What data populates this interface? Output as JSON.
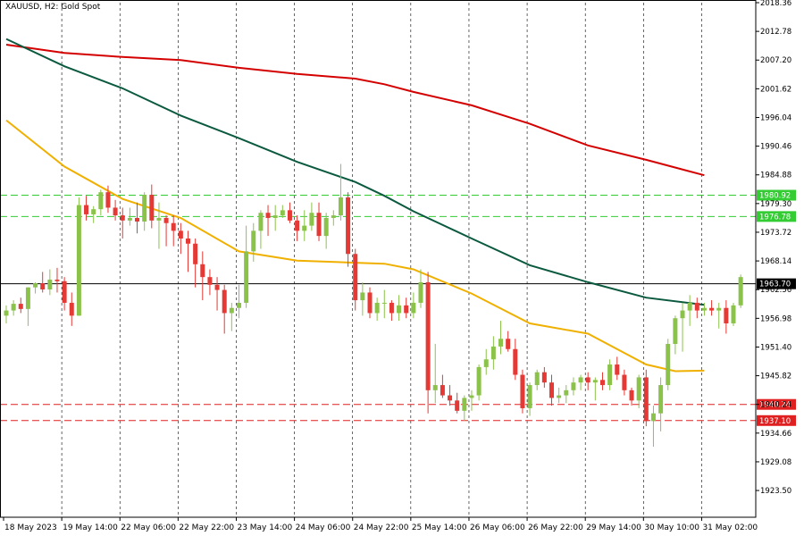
{
  "chart_title": "XAUUSD, H2:  Gold Spot",
  "chart_data": {
    "type": "candlestick",
    "symbol": "XAUUSD",
    "timeframe": "H2",
    "description": "Gold Spot",
    "grid": "vertical dashed",
    "ylim": [
      1918.3,
      2018.36
    ],
    "y_ticks": [
      "2018.36",
      "2012.78",
      "2007.20",
      "2001.62",
      "1996.04",
      "1990.46",
      "1984.88",
      "1979.30",
      "1973.72",
      "1968.14",
      "1962.56",
      "1956.98",
      "1951.40",
      "1945.82",
      "1940.24",
      "1934.66",
      "1929.08",
      "1923.50"
    ],
    "x_labels": [
      "18 May 2023",
      "19 May 14:00",
      "22 May 06:00",
      "22 May 22:00",
      "23 May 14:00",
      "24 May 06:00",
      "24 May 22:00",
      "25 May 14:00",
      "26 May 06:00",
      "26 May 22:00",
      "29 May 14:00",
      "30 May 10:00",
      "31 May 02:00"
    ],
    "x_label_positions": [
      0,
      8,
      16,
      24,
      32,
      40,
      48,
      56,
      64,
      72,
      80,
      88,
      96
    ],
    "candles": [
      [
        1957.5,
        1959.5,
        1956.0,
        1958.5
      ],
      [
        1958.5,
        1960.5,
        1957.5,
        1959.8
      ],
      [
        1959.8,
        1961.0,
        1958.0,
        1958.8
      ],
      [
        1958.8,
        1963.0,
        1955.5,
        1963.0
      ],
      [
        1963.0,
        1964.0,
        1961.8,
        1963.8
      ],
      [
        1963.8,
        1966.0,
        1962.0,
        1962.6
      ],
      [
        1962.6,
        1966.5,
        1961.5,
        1964.5
      ],
      [
        1964.5,
        1966.8,
        1962.0,
        1964.2
      ],
      [
        1964.2,
        1965.0,
        1958.5,
        1960.0
      ],
      [
        1960.0,
        1962.0,
        1955.5,
        1957.5
      ],
      [
        1957.5,
        1980.5,
        1957.5,
        1979.0
      ],
      [
        1979.0,
        1980.8,
        1976.0,
        1977.2
      ],
      [
        1977.2,
        1978.8,
        1975.5,
        1978.2
      ],
      [
        1978.2,
        1982.0,
        1977.0,
        1981.5
      ],
      [
        1981.5,
        1982.8,
        1977.5,
        1978.5
      ],
      [
        1978.5,
        1980.0,
        1976.0,
        1977.0
      ],
      [
        1977.0,
        1978.5,
        1972.5,
        1976.0
      ],
      [
        1976.0,
        1978.5,
        1975.0,
        1976.5
      ],
      [
        1976.5,
        1979.5,
        1973.5,
        1975.8
      ],
      [
        1975.8,
        1981.5,
        1974.0,
        1981.0
      ],
      [
        1981.0,
        1983.0,
        1974.5,
        1976.0
      ],
      [
        1976.0,
        1979.5,
        1970.5,
        1976.5
      ],
      [
        1976.5,
        1977.0,
        1971.0,
        1975.5
      ],
      [
        1975.5,
        1977.0,
        1971.0,
        1974.0
      ],
      [
        1974.0,
        1975.5,
        1969.5,
        1972.5
      ],
      [
        1972.5,
        1974.0,
        1966.0,
        1971.5
      ],
      [
        1971.5,
        1972.5,
        1963.0,
        1967.5
      ],
      [
        1967.5,
        1970.0,
        1960.5,
        1965.0
      ],
      [
        1965.0,
        1966.5,
        1961.5,
        1963.5
      ],
      [
        1963.5,
        1965.0,
        1958.5,
        1962.5
      ],
      [
        1962.5,
        1963.5,
        1954.0,
        1958.0
      ],
      [
        1958.0,
        1960.0,
        1954.5,
        1959.0
      ],
      [
        1959.0,
        1963.5,
        1957.0,
        1960.0
      ],
      [
        1960.0,
        1975.0,
        1959.0,
        1970.0
      ],
      [
        1970.0,
        1975.5,
        1968.0,
        1974.0
      ],
      [
        1974.0,
        1978.0,
        1970.5,
        1977.5
      ],
      [
        1977.5,
        1979.0,
        1973.0,
        1976.5
      ],
      [
        1976.5,
        1979.0,
        1974.0,
        1977.0
      ],
      [
        1977.0,
        1979.0,
        1976.5,
        1978.0
      ],
      [
        1978.0,
        1979.5,
        1975.5,
        1976.0
      ],
      [
        1976.0,
        1977.0,
        1972.0,
        1974.0
      ],
      [
        1974.0,
        1978.0,
        1972.0,
        1975.0
      ],
      [
        1975.0,
        1979.5,
        1974.0,
        1977.5
      ],
      [
        1977.5,
        1979.5,
        1972.0,
        1973.0
      ],
      [
        1973.0,
        1977.5,
        1970.5,
        1976.5
      ],
      [
        1976.5,
        1978.0,
        1975.0,
        1977.0
      ],
      [
        1977.0,
        1987.0,
        1976.0,
        1980.5
      ],
      [
        1980.5,
        1981.5,
        1967.0,
        1969.5
      ],
      [
        1969.5,
        1970.5,
        1958.5,
        1960.5
      ],
      [
        1960.5,
        1964.0,
        1957.5,
        1962.0
      ],
      [
        1962.0,
        1963.0,
        1957.0,
        1958.0
      ],
      [
        1958.0,
        1961.0,
        1956.5,
        1960.0
      ],
      [
        1960.0,
        1962.5,
        1957.0,
        1960.0
      ],
      [
        1960.0,
        1960.5,
        1956.5,
        1958.0
      ],
      [
        1958.0,
        1961.5,
        1956.5,
        1959.5
      ],
      [
        1959.5,
        1961.0,
        1957.0,
        1958.0
      ],
      [
        1958.0,
        1962.0,
        1957.0,
        1960.0
      ],
      [
        1960.0,
        1966.5,
        1959.0,
        1964.0
      ],
      [
        1964.0,
        1966.0,
        1938.5,
        1943.0
      ],
      [
        1943.0,
        1952.0,
        1940.5,
        1944.0
      ],
      [
        1944.0,
        1946.0,
        1941.5,
        1942.0
      ],
      [
        1942.0,
        1944.0,
        1940.0,
        1941.0
      ],
      [
        1941.0,
        1942.5,
        1938.5,
        1939.0
      ],
      [
        1939.0,
        1942.0,
        1937.0,
        1941.5
      ],
      [
        1941.5,
        1943.0,
        1939.0,
        1942.0
      ],
      [
        1942.0,
        1948.0,
        1941.0,
        1947.5
      ],
      [
        1947.5,
        1951.0,
        1946.0,
        1949.0
      ],
      [
        1949.0,
        1953.5,
        1947.0,
        1951.5
      ],
      [
        1951.5,
        1956.5,
        1950.0,
        1953.0
      ],
      [
        1953.0,
        1954.5,
        1950.5,
        1951.0
      ],
      [
        1951.0,
        1953.0,
        1945.0,
        1946.0
      ],
      [
        1946.0,
        1947.0,
        1938.5,
        1939.5
      ],
      [
        1939.5,
        1944.5,
        1938.0,
        1944.0
      ],
      [
        1944.0,
        1947.0,
        1943.0,
        1946.5
      ],
      [
        1946.5,
        1947.5,
        1943.5,
        1944.5
      ],
      [
        1944.5,
        1946.0,
        1940.0,
        1941.5
      ],
      [
        1941.5,
        1943.5,
        1940.5,
        1942.0
      ],
      [
        1942.0,
        1944.0,
        1940.5,
        1943.0
      ],
      [
        1943.0,
        1945.5,
        1942.0,
        1944.5
      ],
      [
        1944.5,
        1946.0,
        1943.0,
        1945.5
      ],
      [
        1945.5,
        1946.5,
        1943.0,
        1944.5
      ],
      [
        1944.5,
        1945.5,
        1941.0,
        1945.0
      ],
      [
        1945.0,
        1946.5,
        1943.0,
        1944.0
      ],
      [
        1944.0,
        1949.0,
        1943.0,
        1948.0
      ],
      [
        1948.0,
        1949.5,
        1945.0,
        1946.0
      ],
      [
        1946.0,
        1947.0,
        1942.0,
        1943.0
      ],
      [
        1943.0,
        1943.5,
        1940.0,
        1941.0
      ],
      [
        1941.0,
        1946.0,
        1939.5,
        1945.5
      ],
      [
        1945.5,
        1947.0,
        1936.0,
        1937.0
      ],
      [
        1937.0,
        1940.0,
        1932.0,
        1938.5
      ],
      [
        1938.5,
        1945.5,
        1935.0,
        1944.0
      ],
      [
        1944.0,
        1953.0,
        1943.0,
        1952.0
      ],
      [
        1952.0,
        1957.5,
        1950.0,
        1957.0
      ],
      [
        1957.0,
        1960.0,
        1950.5,
        1958.5
      ],
      [
        1958.5,
        1961.5,
        1955.5,
        1960.0
      ],
      [
        1960.0,
        1961.0,
        1957.0,
        1958.5
      ],
      [
        1958.5,
        1960.0,
        1957.5,
        1959.0
      ],
      [
        1959.0,
        1960.5,
        1957.5,
        1958.5
      ],
      [
        1958.5,
        1960.0,
        1955.0,
        1959.0
      ],
      [
        1959.0,
        1960.5,
        1954.0,
        1956.0
      ],
      [
        1956.0,
        1960.0,
        1955.5,
        1959.5
      ],
      [
        1959.5,
        1965.5,
        1959.0,
        1965.0
      ]
    ],
    "moving_averages": [
      {
        "color": "#d40000",
        "label_on_chart": "",
        "points": [
          [
            0,
            2010.2
          ],
          [
            8,
            2008.6
          ],
          [
            16,
            2007.8
          ],
          [
            24,
            2007.2
          ],
          [
            32,
            2005.7
          ],
          [
            40,
            2004.5
          ],
          [
            48,
            2003.6
          ],
          [
            52,
            2002.5
          ],
          [
            56,
            2001.0
          ],
          [
            64,
            1998.4
          ],
          [
            72,
            1994.8
          ],
          [
            80,
            1990.6
          ],
          [
            88,
            1987.8
          ],
          [
            96,
            1984.8
          ]
        ]
      },
      {
        "color": "#0b5a40",
        "label_on_chart": "",
        "points": [
          [
            0,
            2011.3
          ],
          [
            8,
            2006.0
          ],
          [
            16,
            2001.7
          ],
          [
            24,
            1996.4
          ],
          [
            32,
            1992.0
          ],
          [
            40,
            1987.4
          ],
          [
            48,
            1983.5
          ],
          [
            52,
            1980.8
          ],
          [
            56,
            1977.8
          ],
          [
            64,
            1972.5
          ],
          [
            72,
            1967.3
          ],
          [
            80,
            1964.0
          ],
          [
            88,
            1961.0
          ],
          [
            96,
            1959.6
          ]
        ]
      },
      {
        "color": "#f0b000",
        "label_on_chart": "",
        "points": [
          [
            0,
            1995.5
          ],
          [
            8,
            1986.5
          ],
          [
            16,
            1980.2
          ],
          [
            24,
            1976.5
          ],
          [
            32,
            1970.0
          ],
          [
            40,
            1968.2
          ],
          [
            48,
            1967.8
          ],
          [
            52,
            1967.6
          ],
          [
            56,
            1966.5
          ],
          [
            64,
            1961.8
          ],
          [
            72,
            1956.0
          ],
          [
            80,
            1954.0
          ],
          [
            88,
            1948.0
          ],
          [
            92,
            1946.7
          ],
          [
            96,
            1946.8
          ]
        ]
      }
    ],
    "horizontal_lines": [
      {
        "price": "1980.92",
        "color": "#33cc33",
        "style": "dashed"
      },
      {
        "price": "1976.78",
        "color": "#33cc33",
        "style": "dashed"
      },
      {
        "price": "1963.70",
        "color": "#000000",
        "style": "solid"
      },
      {
        "price": "1940.24",
        "color": "#e02020",
        "style": "dashed"
      },
      {
        "price": "1937.10",
        "color": "#e02020",
        "style": "dashed"
      }
    ],
    "colors": {
      "bull": "#8bc34a",
      "bear": "#e53935",
      "wick": "#555555",
      "grid": "#000000",
      "axis_text": "#000000"
    }
  }
}
